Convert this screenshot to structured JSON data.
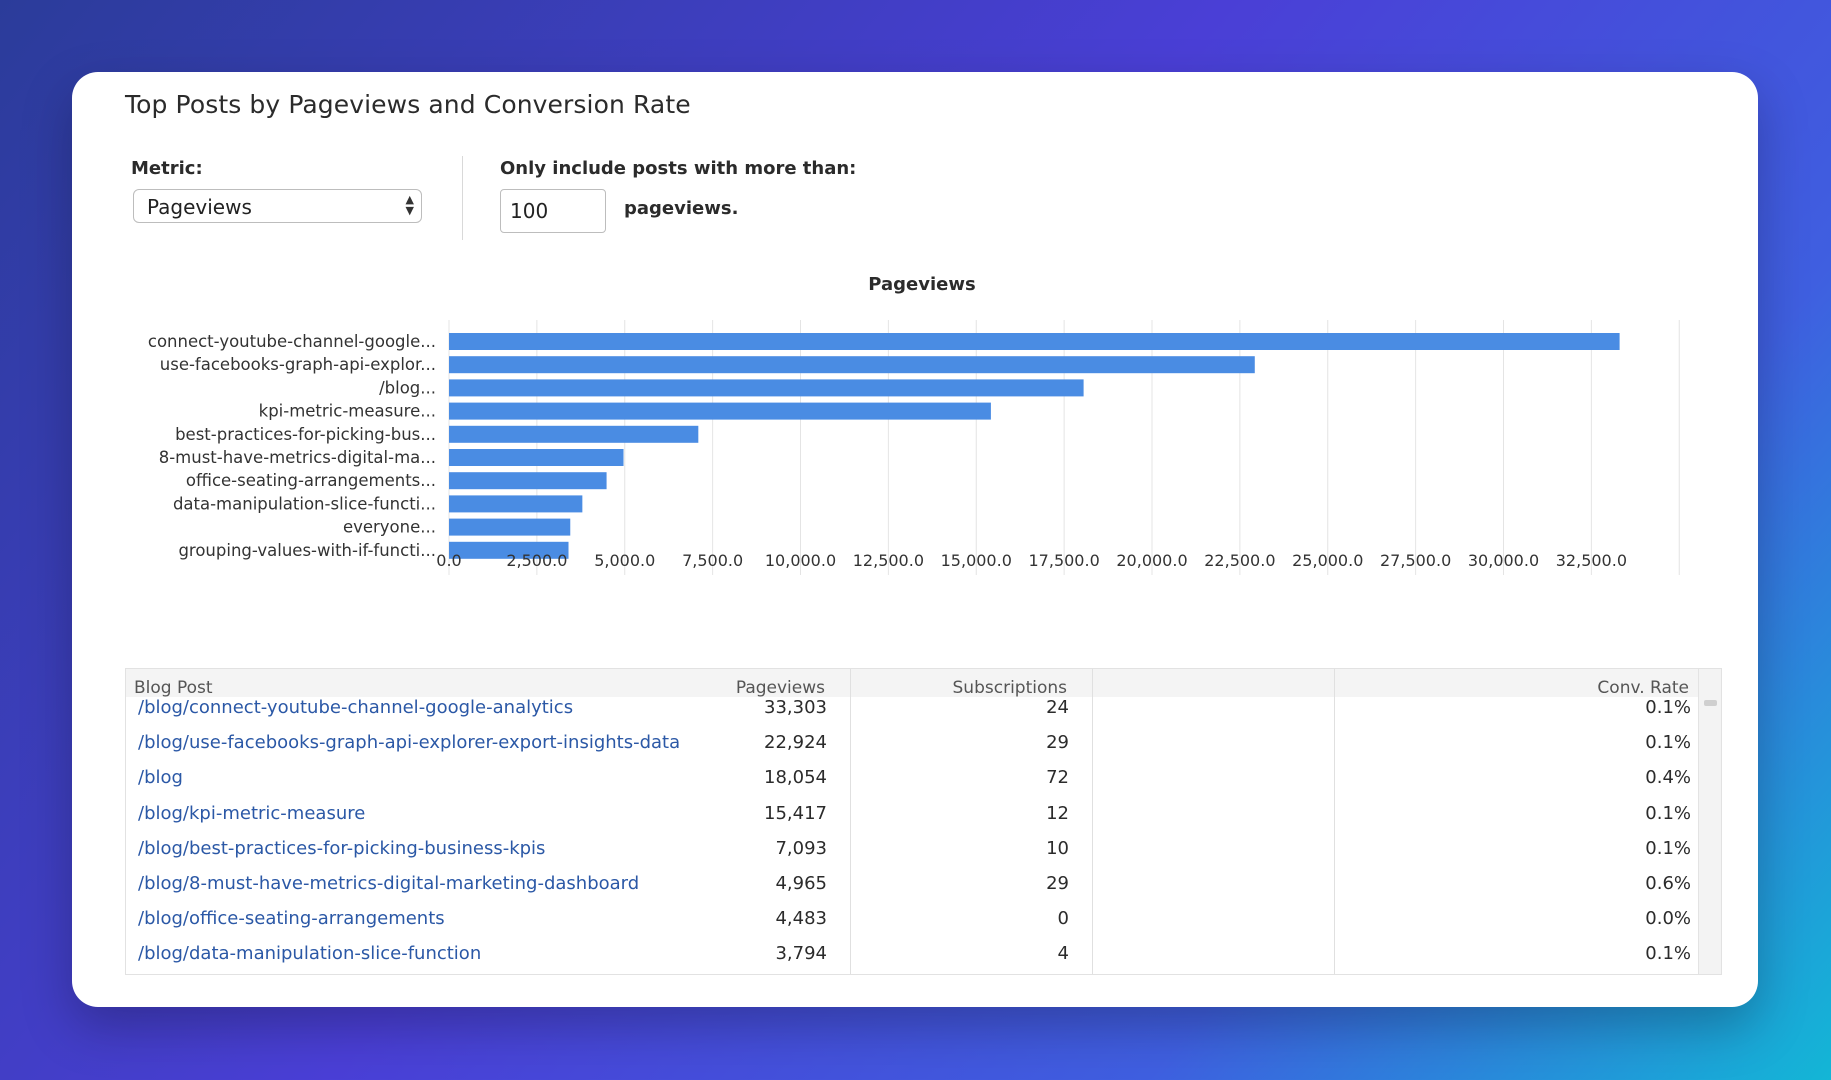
{
  "widget": {
    "title": "Top Posts by Pageviews and Conversion Rate"
  },
  "controls": {
    "metric_label": "Metric:",
    "metric_value": "Pageviews",
    "threshold_label": "Only include posts with more than:",
    "threshold_value": "100",
    "threshold_suffix": "pageviews."
  },
  "colors": {
    "bar": "#4a8ce3",
    "link": "#2b58a6",
    "grid": "#e4e4e4"
  },
  "chart_data": {
    "type": "bar",
    "orientation": "horizontal",
    "title": "Pageviews",
    "categories": [
      "connect-youtube-channel-google...",
      "use-facebooks-graph-api-explor...",
      "/blog...",
      "kpi-metric-measure...",
      "best-practices-for-picking-bus...",
      "8-must-have-metrics-digital-ma...",
      "office-seating-arrangements...",
      "data-manipulation-slice-functi...",
      "everyone...",
      "grouping-values-with-if-functi..."
    ],
    "values": [
      33303,
      22924,
      18054,
      15417,
      7093,
      4965,
      4483,
      3794,
      3450,
      3400
    ],
    "x_ticks": [
      "0.0",
      "2,500.0",
      "5,000.0",
      "7,500.0",
      "10,000.0",
      "12,500.0",
      "15,000.0",
      "17,500.0",
      "20,000.0",
      "22,500.0",
      "25,000.0",
      "27,500.0",
      "30,000.0",
      "32,500.0"
    ],
    "xlim": [
      0,
      35000
    ],
    "grid": true,
    "legend": "none"
  },
  "table": {
    "columns": [
      "Blog Post",
      "Pageviews",
      "Subscriptions",
      "Conv. Rate"
    ],
    "rows": [
      [
        "/blog/connect-youtube-channel-google-analytics",
        "33,303",
        "24",
        "0.1%"
      ],
      [
        "/blog/use-facebooks-graph-api-explorer-export-insights-data",
        "22,924",
        "29",
        "0.1%"
      ],
      [
        "/blog",
        "18,054",
        "72",
        "0.4%"
      ],
      [
        "/blog/kpi-metric-measure",
        "15,417",
        "12",
        "0.1%"
      ],
      [
        "/blog/best-practices-for-picking-business-kpis",
        "7,093",
        "10",
        "0.1%"
      ],
      [
        "/blog/8-must-have-metrics-digital-marketing-dashboard",
        "4,965",
        "29",
        "0.6%"
      ],
      [
        "/blog/office-seating-arrangements",
        "4,483",
        "0",
        "0.0%"
      ],
      [
        "/blog/data-manipulation-slice-function",
        "3,794",
        "4",
        "0.1%"
      ]
    ]
  }
}
